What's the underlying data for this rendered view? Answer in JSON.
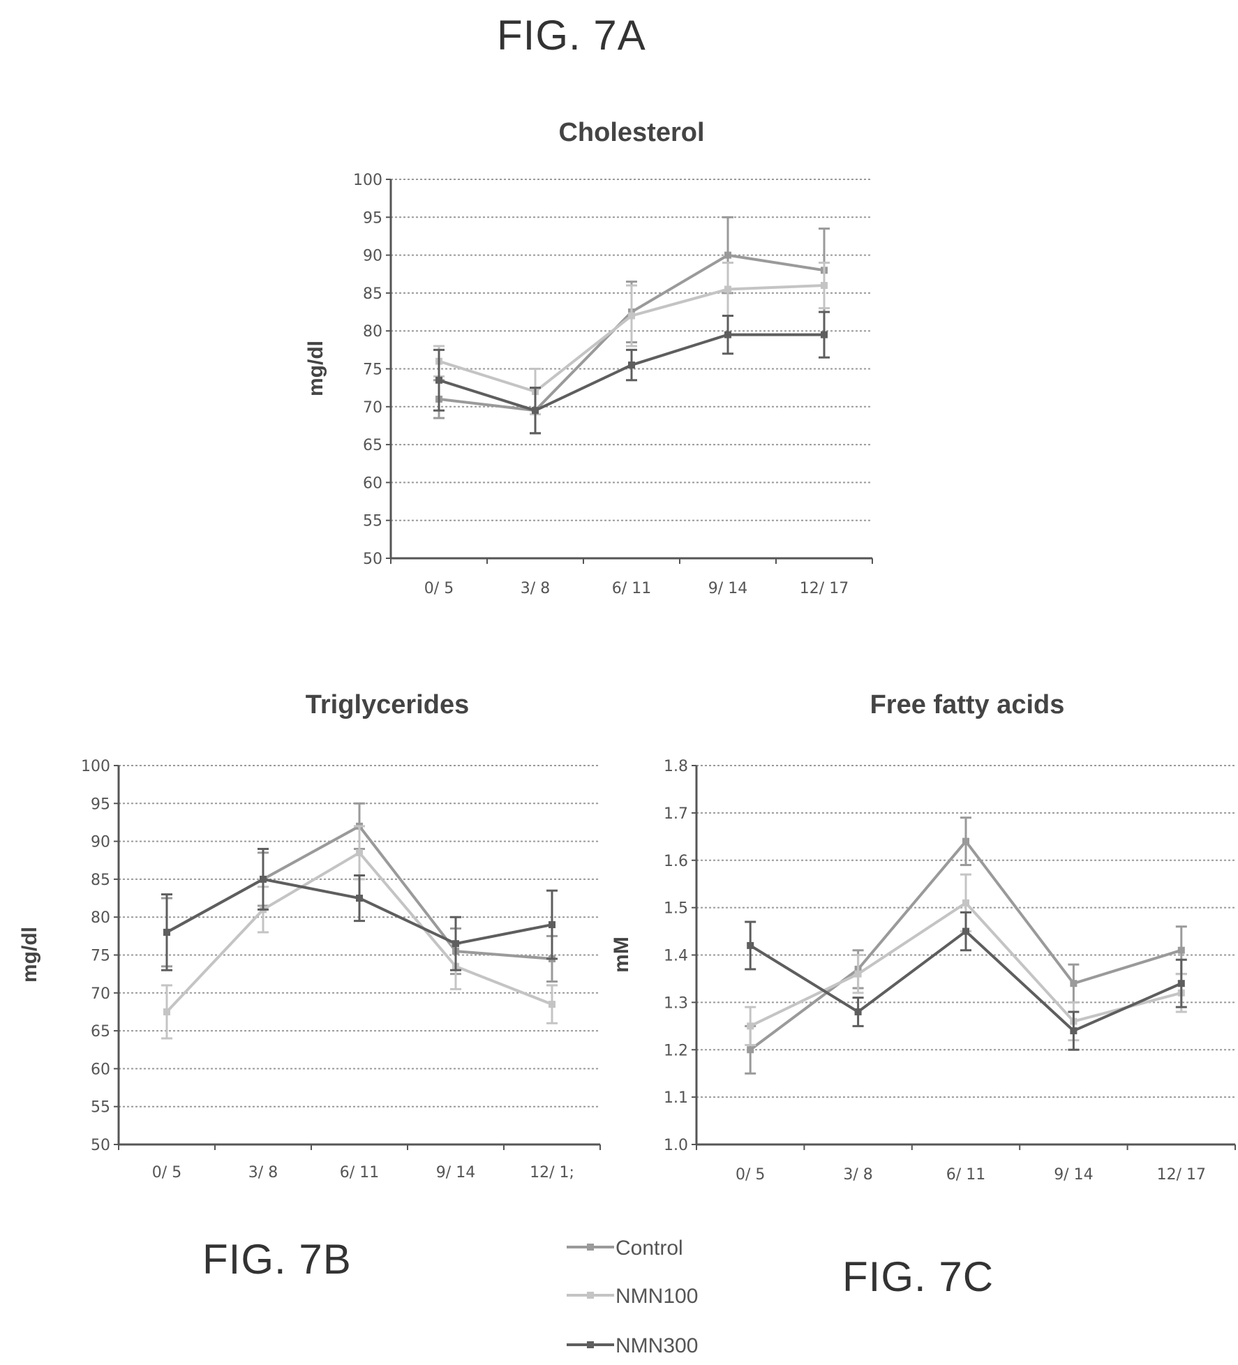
{
  "figure_labels": {
    "fig_a": "FIG. 7A",
    "fig_b": "FIG. 7B",
    "fig_c": "FIG. 7C"
  },
  "legend": [
    {
      "name": "Control",
      "color": "#9a9a9a"
    },
    {
      "name": "NMN100",
      "color": "#c4c4c4"
    },
    {
      "name": "NMN300",
      "color": "#5e5e5e"
    }
  ],
  "chart_data": [
    {
      "id": "A",
      "type": "line",
      "title": "Cholesterol",
      "xlabel": "",
      "ylabel": "mg/dl",
      "categories": [
        "0/ 5",
        "3/ 8",
        "6/ 11",
        "9/ 14",
        "12/ 17"
      ],
      "ylim": [
        50,
        100
      ],
      "yticks": [
        50,
        55,
        60,
        65,
        70,
        75,
        80,
        85,
        90,
        95,
        100
      ],
      "ytick_labels": [
        "50",
        "55",
        "60",
        "65",
        "70",
        "75",
        "80",
        "85",
        "90",
        "95",
        "100"
      ],
      "grid": true,
      "series": [
        {
          "name": "Control",
          "values": [
            71,
            69.5,
            82.5,
            90,
            88
          ],
          "errors": [
            2.5,
            3,
            4,
            5,
            5.5
          ]
        },
        {
          "name": "NMN100",
          "values": [
            76,
            72,
            82,
            85.5,
            86
          ],
          "errors": [
            2,
            3,
            4,
            3.5,
            3
          ]
        },
        {
          "name": "NMN300",
          "values": [
            73.5,
            69.5,
            75.5,
            79.5,
            79.5
          ],
          "errors": [
            4,
            3,
            2,
            2.5,
            3
          ]
        }
      ]
    },
    {
      "id": "B",
      "type": "line",
      "title": "Triglycerides",
      "xlabel": "",
      "ylabel": "mg/dl",
      "categories": [
        "0/ 5",
        "3/ 8",
        "6/ 11",
        "9/ 14",
        "12/ 1;"
      ],
      "ylim": [
        50,
        100
      ],
      "yticks": [
        50,
        55,
        60,
        65,
        70,
        75,
        80,
        85,
        90,
        95,
        100
      ],
      "ytick_labels": [
        "50",
        "55",
        "60",
        "65",
        "70",
        "75",
        "80",
        "85",
        "90",
        "95",
        "100"
      ],
      "grid": true,
      "series": [
        {
          "name": "Control",
          "values": [
            78,
            85,
            92,
            75.5,
            74.5
          ],
          "errors": [
            4.5,
            3.5,
            3,
            3,
            3
          ]
        },
        {
          "name": "NMN100",
          "values": [
            67.5,
            81,
            88.5,
            73.5,
            68.5
          ],
          "errors": [
            3.5,
            3,
            3.5,
            3,
            2.5
          ]
        },
        {
          "name": "NMN300",
          "values": [
            78,
            85,
            82.5,
            76.5,
            79
          ],
          "errors": [
            5,
            4,
            3,
            3.5,
            4.5
          ]
        }
      ]
    },
    {
      "id": "C",
      "type": "line",
      "title": "Free fatty acids",
      "xlabel": "",
      "ylabel": "mM",
      "categories": [
        "0/ 5",
        "3/ 8",
        "6/ 11",
        "9/ 14",
        "12/ 17"
      ],
      "ylim": [
        1.0,
        1.8
      ],
      "yticks": [
        1.0,
        1.1,
        1.2,
        1.3,
        1.4,
        1.5,
        1.6,
        1.7,
        1.8
      ],
      "ytick_labels": [
        "1.0",
        "1.1",
        "1.2",
        "1.3",
        "1.4",
        "1.5",
        "1.6",
        "1.7",
        "1.8"
      ],
      "grid": true,
      "series": [
        {
          "name": "Control",
          "values": [
            1.2,
            1.37,
            1.64,
            1.34,
            1.41
          ],
          "errors": [
            0.05,
            0.04,
            0.05,
            0.04,
            0.05
          ]
        },
        {
          "name": "NMN100",
          "values": [
            1.25,
            1.36,
            1.51,
            1.26,
            1.32
          ],
          "errors": [
            0.04,
            0.04,
            0.06,
            0.04,
            0.04
          ]
        },
        {
          "name": "NMN300",
          "values": [
            1.42,
            1.28,
            1.45,
            1.24,
            1.34
          ],
          "errors": [
            0.05,
            0.03,
            0.04,
            0.04,
            0.05
          ]
        }
      ]
    }
  ]
}
